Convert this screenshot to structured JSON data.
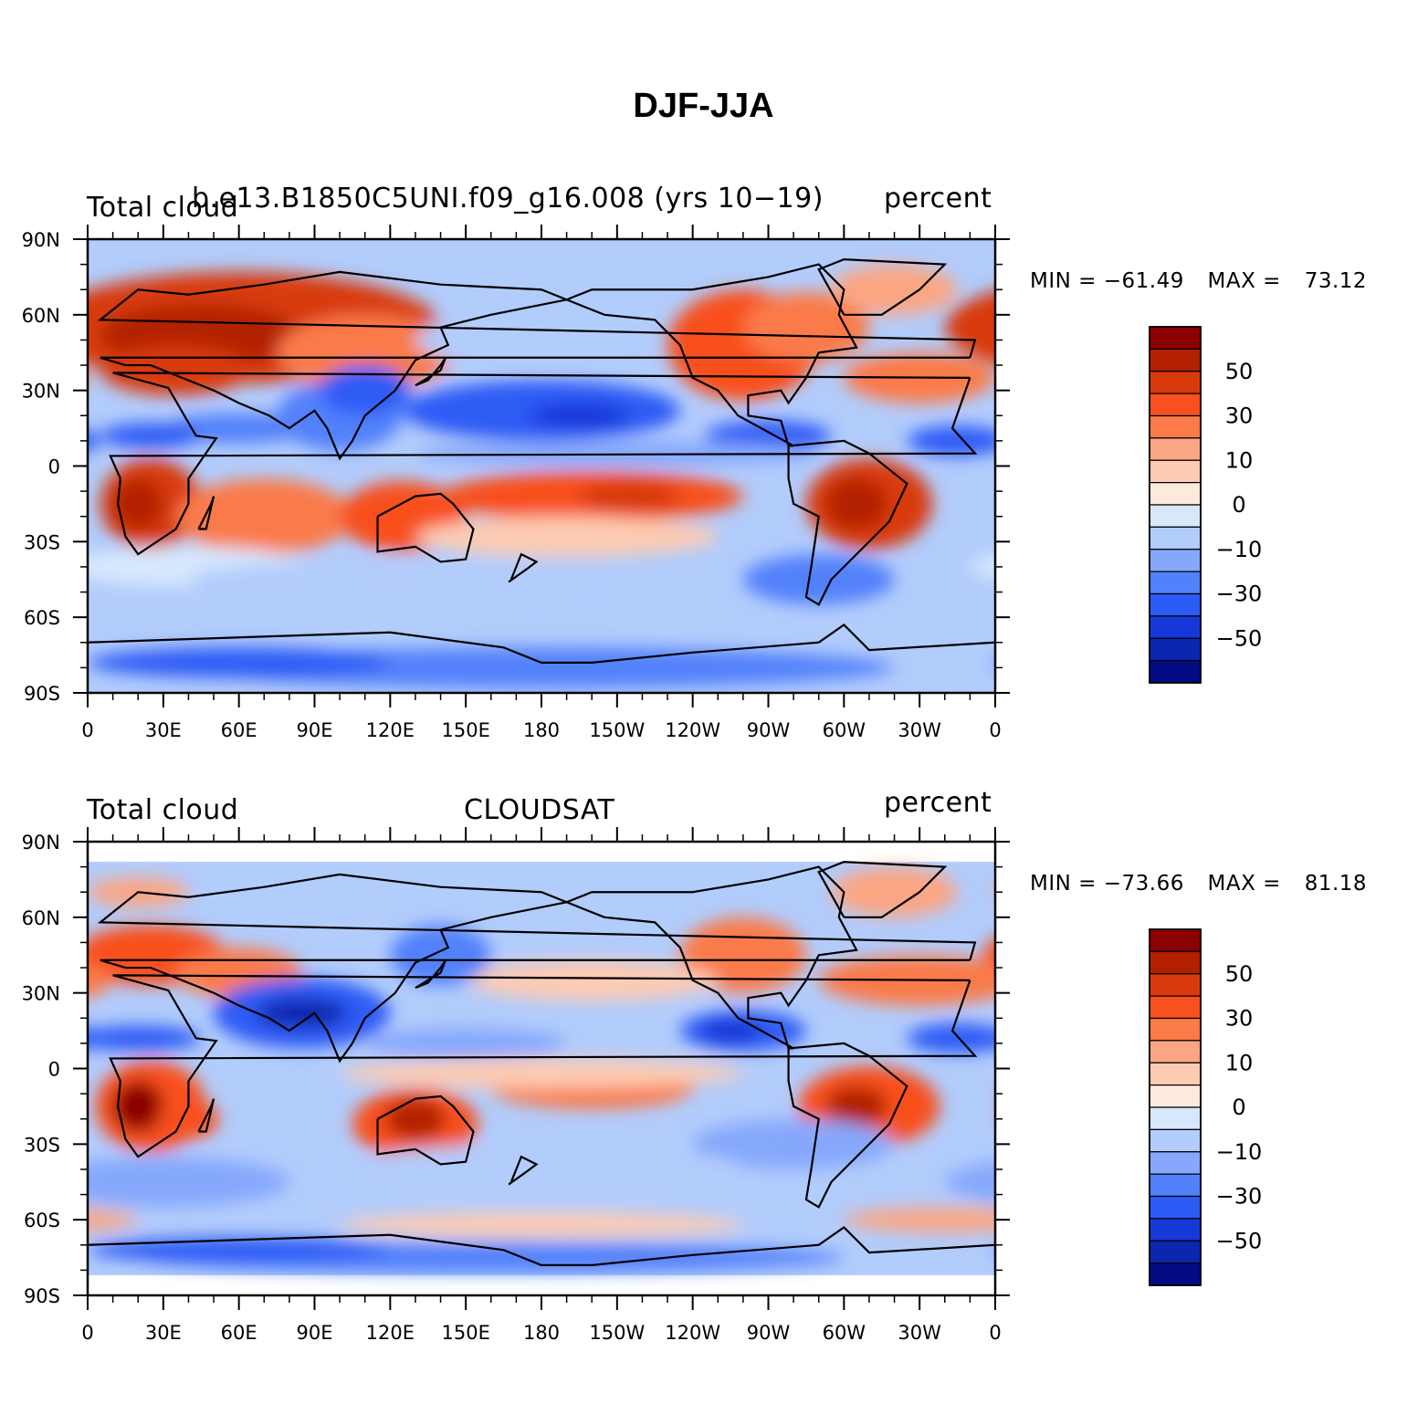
{
  "title": "DJF-JJA",
  "panels": [
    {
      "left_title": "Total cloud",
      "center_title": "b.e13.B1850C5UNI.f09_g16.008 (yrs 10−19)",
      "right_title": "percent",
      "min_label": "MIN = ",
      "min_value": "−61.49",
      "max_label": "MAX = ",
      "max_value": "73.12"
    },
    {
      "left_title": "Total cloud",
      "center_title": "CLOUDSAT",
      "right_title": "percent",
      "min_label": "MIN = ",
      "min_value": "−73.66",
      "max_label": "MAX = ",
      "max_value": "81.18"
    }
  ],
  "axes": {
    "lat_labels": [
      "90N",
      "60N",
      "30N",
      "0",
      "30S",
      "60S",
      "90S"
    ],
    "lon_labels": [
      "0",
      "30E",
      "60E",
      "90E",
      "120E",
      "150E",
      "180",
      "150W",
      "120W",
      "90W",
      "60W",
      "30W",
      "0"
    ]
  },
  "colorbar": {
    "labels": [
      "50",
      "30",
      "10",
      "0",
      "−10",
      "−30",
      "−50"
    ],
    "colors": [
      "#8b0000",
      "#b22000",
      "#d83a0c",
      "#f8501f",
      "#fa7a48",
      "#fba683",
      "#fdcbb2",
      "#feeadd",
      "#d7e8fd",
      "#b2ccfc",
      "#86a8fc",
      "#5281fb",
      "#2d5bf5",
      "#1638d8",
      "#0c26b0",
      "#020b82"
    ]
  },
  "chart_data": [
    {
      "type": "heatmap",
      "title": "DJF-JJA",
      "variable": "Total cloud",
      "source": "b.e13.B1850C5UNI.f09_g16.008 (yrs 10−19)",
      "units": "percent",
      "min": -61.49,
      "max": 73.12,
      "x_ticks": [
        "0",
        "30E",
        "60E",
        "90E",
        "120E",
        "150E",
        "180",
        "150W",
        "120W",
        "90W",
        "60W",
        "30W",
        "0"
      ],
      "y_ticks": [
        "90N",
        "60N",
        "30N",
        "0",
        "30S",
        "60S",
        "90S"
      ],
      "xlim": [
        0,
        360
      ],
      "ylim": [
        -90,
        90
      ]
    },
    {
      "type": "heatmap",
      "title": "DJF-JJA",
      "variable": "Total cloud",
      "source": "CLOUDSAT",
      "units": "percent",
      "min": -73.66,
      "max": 81.18,
      "x_ticks": [
        "0",
        "30E",
        "60E",
        "90E",
        "120E",
        "150E",
        "180",
        "150W",
        "120W",
        "90W",
        "60W",
        "30W",
        "0"
      ],
      "y_ticks": [
        "90N",
        "60N",
        "30N",
        "0",
        "30S",
        "60S",
        "90S"
      ],
      "xlim": [
        0,
        360
      ],
      "ylim": [
        -90,
        90
      ]
    }
  ]
}
